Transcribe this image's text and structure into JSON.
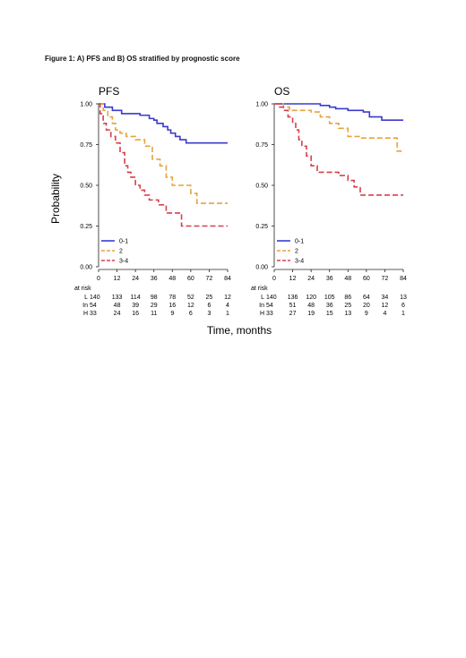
{
  "figure_title": "Figure 1: A) PFS and B) OS stratified by prognostic score",
  "shared": {
    "ylabel": "Probability",
    "xlabel": "Time, months",
    "at_risk_label": "at risk",
    "legend_placement": "bottom-left"
  },
  "chart_data": [
    {
      "type": "line",
      "step": true,
      "title": "PFS",
      "xlim": [
        0,
        84
      ],
      "ylim": [
        0,
        1
      ],
      "xticks": [
        "0",
        "12",
        "24",
        "36",
        "48",
        "60",
        "72",
        "84"
      ],
      "yticks": [
        "0.00",
        "0.25",
        "0.50",
        "0.75",
        "1.00"
      ],
      "grid": false,
      "legend": "bottom-left",
      "series": [
        {
          "name": "0-1",
          "color": "#3a3acc",
          "dash": "solid",
          "points": [
            [
              0,
              1.0
            ],
            [
              4,
              0.98
            ],
            [
              9,
              0.96
            ],
            [
              15,
              0.94
            ],
            [
              27,
              0.93
            ],
            [
              33,
              0.91
            ],
            [
              36,
              0.9
            ],
            [
              38,
              0.88
            ],
            [
              42,
              0.86
            ],
            [
              45,
              0.84
            ],
            [
              47,
              0.82
            ],
            [
              50,
              0.8
            ],
            [
              53,
              0.78
            ],
            [
              57,
              0.76
            ],
            [
              64,
              0.76
            ],
            [
              84,
              0.76
            ]
          ]
        },
        {
          "name": "2",
          "color": "#e8a23c",
          "dash": "dashed",
          "points": [
            [
              0,
              1.0
            ],
            [
              3,
              0.96
            ],
            [
              6,
              0.92
            ],
            [
              9,
              0.88
            ],
            [
              11,
              0.84
            ],
            [
              14,
              0.82
            ],
            [
              18,
              0.8
            ],
            [
              24,
              0.78
            ],
            [
              30,
              0.74
            ],
            [
              35,
              0.66
            ],
            [
              40,
              0.62
            ],
            [
              44,
              0.55
            ],
            [
              48,
              0.5
            ],
            [
              60,
              0.45
            ],
            [
              64,
              0.39
            ],
            [
              84,
              0.39
            ]
          ]
        },
        {
          "name": "3-4",
          "color": "#d6404a",
          "dash": "dashed",
          "points": [
            [
              0,
              1.0
            ],
            [
              1,
              0.94
            ],
            [
              3,
              0.88
            ],
            [
              5,
              0.84
            ],
            [
              8,
              0.8
            ],
            [
              11,
              0.76
            ],
            [
              14,
              0.7
            ],
            [
              17,
              0.62
            ],
            [
              19,
              0.58
            ],
            [
              21,
              0.55
            ],
            [
              24,
              0.5
            ],
            [
              27,
              0.47
            ],
            [
              30,
              0.44
            ],
            [
              33,
              0.41
            ],
            [
              39,
              0.38
            ],
            [
              44,
              0.33
            ],
            [
              54,
              0.25
            ],
            [
              84,
              0.25
            ]
          ]
        }
      ],
      "at_risk": {
        "times": [
          0,
          12,
          24,
          36,
          48,
          60,
          72,
          84
        ],
        "rows": [
          {
            "label": "L",
            "values": [
              140,
              133,
              114,
              98,
              78,
              52,
              25,
              12
            ]
          },
          {
            "label": "In",
            "values": [
              54,
              48,
              39,
              29,
              16,
              12,
              6,
              4
            ]
          },
          {
            "label": "H",
            "values": [
              33,
              24,
              16,
              11,
              9,
              6,
              3,
              1
            ]
          }
        ]
      }
    },
    {
      "type": "line",
      "step": true,
      "title": "OS",
      "xlim": [
        0,
        84
      ],
      "ylim": [
        0,
        1
      ],
      "xticks": [
        "0",
        "12",
        "24",
        "36",
        "48",
        "60",
        "72",
        "84"
      ],
      "yticks": [
        "0.00",
        "0.25",
        "0.50",
        "0.75",
        "1.00"
      ],
      "grid": false,
      "legend": "bottom-left",
      "series": [
        {
          "name": "0-1",
          "color": "#3a3acc",
          "dash": "solid",
          "points": [
            [
              0,
              1.0
            ],
            [
              24,
              1.0
            ],
            [
              30,
              0.99
            ],
            [
              36,
              0.98
            ],
            [
              40,
              0.97
            ],
            [
              48,
              0.96
            ],
            [
              58,
              0.95
            ],
            [
              62,
              0.92
            ],
            [
              67,
              0.92
            ],
            [
              70,
              0.9
            ],
            [
              84,
              0.9
            ]
          ]
        },
        {
          "name": "2",
          "color": "#e8a23c",
          "dash": "dashed",
          "points": [
            [
              0,
              1.0
            ],
            [
              6,
              0.98
            ],
            [
              10,
              0.96
            ],
            [
              24,
              0.95
            ],
            [
              30,
              0.92
            ],
            [
              36,
              0.88
            ],
            [
              42,
              0.85
            ],
            [
              48,
              0.8
            ],
            [
              56,
              0.79
            ],
            [
              76,
              0.79
            ],
            [
              80,
              0.71
            ],
            [
              84,
              0.71
            ]
          ]
        },
        {
          "name": "3-4",
          "color": "#d6404a",
          "dash": "dashed",
          "points": [
            [
              0,
              1.0
            ],
            [
              3,
              0.98
            ],
            [
              6,
              0.96
            ],
            [
              9,
              0.92
            ],
            [
              12,
              0.88
            ],
            [
              14,
              0.84
            ],
            [
              16,
              0.78
            ],
            [
              18,
              0.74
            ],
            [
              21,
              0.68
            ],
            [
              24,
              0.62
            ],
            [
              28,
              0.58
            ],
            [
              36,
              0.58
            ],
            [
              42,
              0.56
            ],
            [
              48,
              0.53
            ],
            [
              52,
              0.49
            ],
            [
              56,
              0.44
            ],
            [
              84,
              0.44
            ]
          ]
        }
      ],
      "at_risk": {
        "times": [
          0,
          12,
          24,
          36,
          48,
          60,
          72,
          84
        ],
        "rows": [
          {
            "label": "L",
            "values": [
              140,
              136,
              120,
              105,
              86,
              64,
              34,
              13
            ]
          },
          {
            "label": "In",
            "values": [
              54,
              51,
              48,
              36,
              25,
              20,
              12,
              6
            ]
          },
          {
            "label": "H",
            "values": [
              33,
              27,
              19,
              15,
              13,
              9,
              4,
              1
            ]
          }
        ]
      }
    }
  ]
}
